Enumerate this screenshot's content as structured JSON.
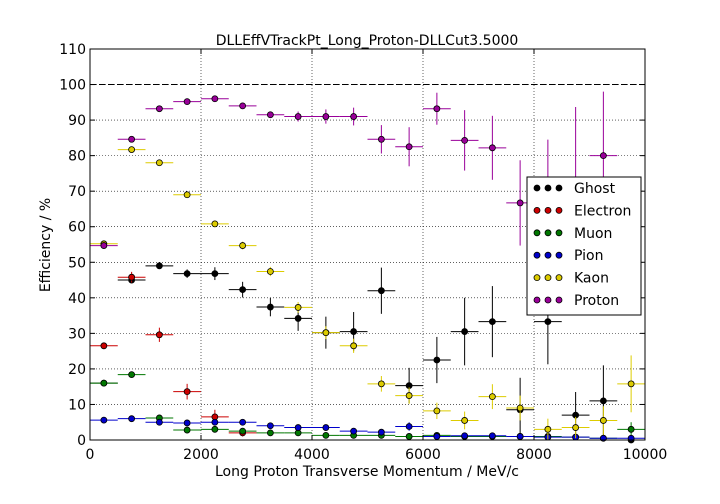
{
  "chart_data": {
    "type": "scatter",
    "title": "DLLEffVTrackPt_Long_Proton-DLLCut3.5000",
    "xlabel": "Long Proton Transverse Momentum / MeV/c",
    "ylabel": "Efficiency / %",
    "xlim": [
      0,
      10000
    ],
    "ylim": [
      0,
      110
    ],
    "xticks": [
      "0",
      "2000",
      "4000",
      "6000",
      "8000",
      "10000"
    ],
    "yticks": [
      "0",
      "10",
      "20",
      "30",
      "40",
      "50",
      "60",
      "70",
      "80",
      "90",
      "100",
      "110"
    ],
    "grid": true,
    "reference_line_y": 100,
    "legend_position": "center-right",
    "x_bin_half_width": 250,
    "series": [
      {
        "name": "Ghost",
        "color": "#000000",
        "x": [
          250,
          750,
          1250,
          1750,
          2250,
          2750,
          3250,
          3750,
          4250,
          4750,
          5250,
          5750,
          6250,
          6750,
          7250,
          7750,
          8250,
          8750,
          9250,
          9750
        ],
        "y": [
          16,
          45,
          49,
          46.8,
          46.8,
          42.3,
          37.4,
          34.2,
          30.2,
          30.5,
          42,
          15.3,
          22.5,
          30.5,
          33.3,
          8.5,
          33.3,
          7,
          11,
          0
        ],
        "err": [
          0.5,
          0.8,
          0.8,
          1.2,
          1.8,
          2.2,
          2.6,
          3.5,
          4.5,
          5.5,
          6.5,
          5.0,
          6.5,
          9.5,
          10,
          9.0,
          12,
          6.5,
          10,
          0
        ]
      },
      {
        "name": "Electron",
        "color": "#cc0000",
        "x": [
          250,
          750,
          1250,
          1750,
          2250,
          2750
        ],
        "y": [
          26.5,
          45.8,
          29.6,
          13.6,
          6.5,
          2
        ],
        "err": [
          0.5,
          1.5,
          2.0,
          2.2,
          2.0,
          1.0
        ]
      },
      {
        "name": "Muon",
        "color": "#007700",
        "x": [
          250,
          750,
          1250,
          1750,
          2250,
          2750,
          3250,
          3750,
          4250,
          4750,
          5250,
          5750,
          6250,
          6750,
          7250,
          7750,
          8250,
          8750,
          9250,
          9750
        ],
        "y": [
          16,
          18.4,
          6.2,
          2.8,
          3,
          2.5,
          2,
          2,
          1.3,
          1.3,
          1.3,
          1,
          1.3,
          1,
          1,
          1,
          1,
          0.8,
          0.5,
          3
        ],
        "err": [
          0.5,
          0.5,
          0.5,
          0.5,
          0.5,
          0.5,
          0.5,
          0.5,
          0.5,
          0.5,
          0.5,
          0.5,
          0.5,
          0.5,
          0.5,
          0.5,
          0.5,
          0.5,
          0.5,
          2.0
        ]
      },
      {
        "name": "Pion",
        "color": "#0000cc",
        "x": [
          250,
          750,
          1250,
          1750,
          2250,
          2750,
          3250,
          3750,
          4250,
          4750,
          5250,
          5750,
          6250,
          6750,
          7250,
          7750,
          8250,
          8750,
          9250,
          9750
        ],
        "y": [
          5.6,
          6,
          5,
          4.8,
          5,
          5,
          4,
          3.5,
          3.5,
          2.5,
          2.2,
          3.8,
          1,
          1.2,
          1.2,
          1,
          0.8,
          0.8,
          0.5,
          0.5
        ],
        "err": [
          0.3,
          0.3,
          0.3,
          0.3,
          0.3,
          0.3,
          0.3,
          0.4,
          0.5,
          0.6,
          0.8,
          1.2,
          0.5,
          0.5,
          0.5,
          0.5,
          0.5,
          0.5,
          0.4,
          0.4
        ]
      },
      {
        "name": "Kaon",
        "color": "#ddcc00",
        "x": [
          250,
          750,
          1250,
          1750,
          2250,
          2750,
          3250,
          3750,
          4250,
          4750,
          5250,
          5750,
          6250,
          6750,
          7250,
          7750,
          8250,
          8750,
          9250,
          9750
        ],
        "y": [
          55.2,
          81.7,
          78,
          69,
          60.8,
          54.7,
          47.4,
          37.3,
          30.2,
          26.5,
          15.8,
          12.5,
          8.2,
          5.5,
          12.2,
          9,
          3,
          3.5,
          5.5,
          15.8
        ],
        "err": [
          0.6,
          0.6,
          0.6,
          0.7,
          0.9,
          1.1,
          1.3,
          1.5,
          1.8,
          2.0,
          2.2,
          2.3,
          2.3,
          2.5,
          3.5,
          3.5,
          3.0,
          3.0,
          4.0,
          8.0
        ]
      },
      {
        "name": "Proton",
        "color": "#990099",
        "x": [
          250,
          750,
          1250,
          1750,
          2250,
          2750,
          3250,
          3750,
          4250,
          4750,
          5250,
          5750,
          6250,
          6750,
          7250,
          7750,
          8250,
          8750,
          9250
        ],
        "y": [
          54.7,
          84.6,
          93.2,
          95.2,
          96,
          94,
          91.5,
          91,
          91,
          91,
          84.6,
          82.5,
          93.2,
          84.3,
          82.2,
          66.7,
          60.5,
          66.7,
          80
        ],
        "err": [
          0.5,
          0.6,
          0.6,
          0.6,
          0.6,
          0.7,
          0.9,
          1.4,
          2.0,
          2.5,
          4.0,
          5.5,
          4.5,
          8.5,
          9.0,
          12.0,
          24.0,
          27.0,
          18.0
        ]
      }
    ]
  }
}
